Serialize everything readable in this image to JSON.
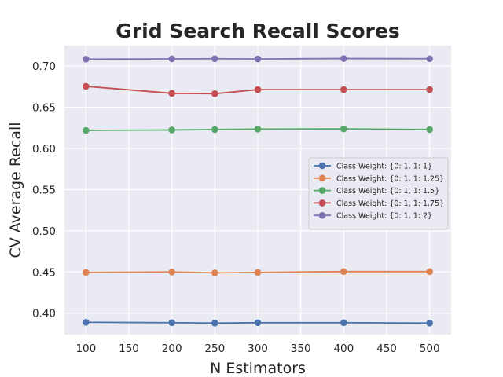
{
  "chart_data": {
    "type": "line",
    "title": "Grid Search Recall Scores",
    "xlabel": "N Estimators",
    "ylabel": "CV Average Recall",
    "x": [
      100,
      200,
      250,
      300,
      400,
      500
    ],
    "xlim": [
      75,
      525
    ],
    "ylim": [
      0.374,
      0.725
    ],
    "xticks": [
      100,
      150,
      200,
      250,
      300,
      350,
      400,
      450,
      500
    ],
    "yticks": [
      0.4,
      0.45,
      0.5,
      0.55,
      0.6,
      0.65,
      0.7
    ],
    "ytick_labels": [
      "0.40",
      "0.45",
      "0.50",
      "0.55",
      "0.60",
      "0.65",
      "0.70"
    ],
    "grid": true,
    "legend_position": "center-right",
    "series": [
      {
        "name": "Class Weight: {0: 1, 1: 1}",
        "color": "#4c72b0",
        "values": [
          0.389,
          0.3885,
          0.388,
          0.3885,
          0.3885,
          0.388
        ]
      },
      {
        "name": "Class Weight: {0: 1, 1: 1.25}",
        "color": "#dd8452",
        "values": [
          0.4495,
          0.45,
          0.449,
          0.4495,
          0.4505,
          0.4505
        ]
      },
      {
        "name": "Class Weight: {0: 1, 1: 1.5}",
        "color": "#55a868",
        "values": [
          0.622,
          0.6225,
          0.623,
          0.6235,
          0.6238,
          0.623
        ]
      },
      {
        "name": "Class Weight: {0: 1, 1: 1.75}",
        "color": "#c44e52",
        "values": [
          0.6755,
          0.667,
          0.6665,
          0.6715,
          0.6715,
          0.6715
        ]
      },
      {
        "name": "Class Weight: {0: 1, 1: 2}",
        "color": "#8172b3",
        "values": [
          0.7085,
          0.7088,
          0.709,
          0.7087,
          0.7092,
          0.709
        ]
      }
    ]
  }
}
